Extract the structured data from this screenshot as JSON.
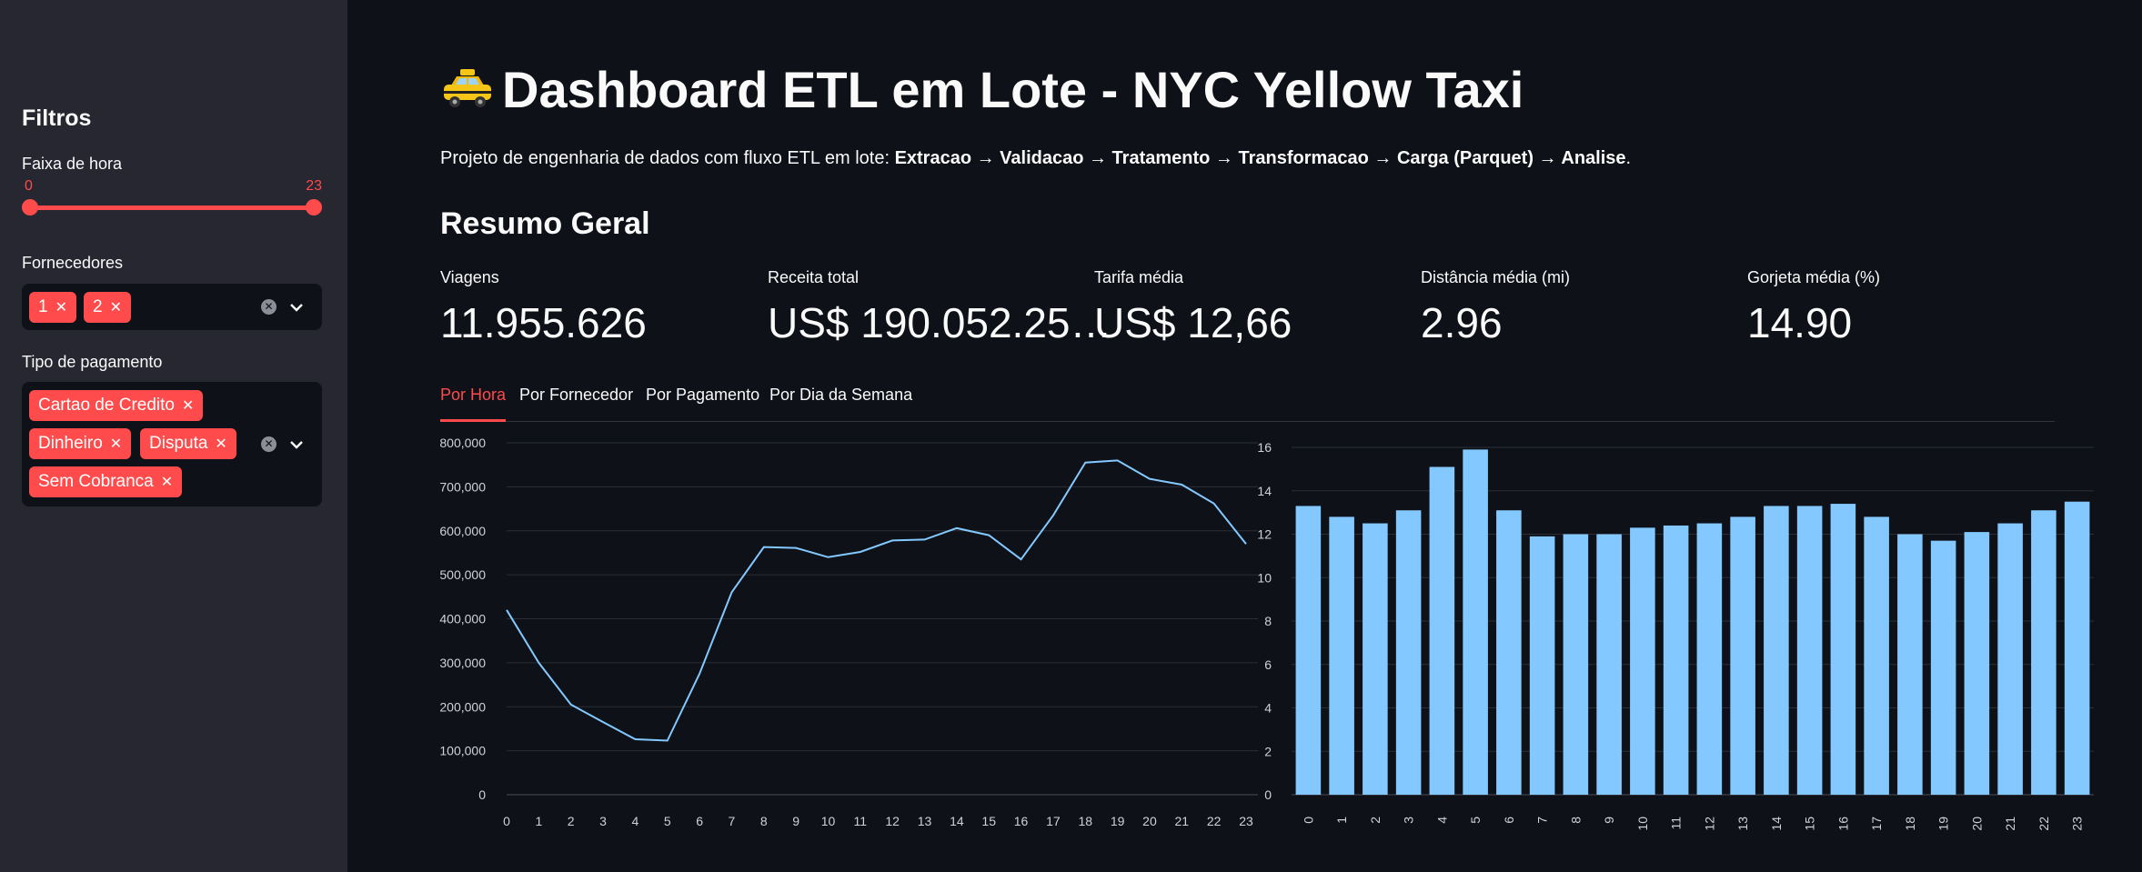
{
  "sidebar": {
    "title": "Filtros",
    "hour_filter": {
      "label": "Faixa de hora",
      "min": "0",
      "max": "23"
    },
    "providers": {
      "label": "Fornecedores",
      "chips": [
        "1",
        "2"
      ]
    },
    "payment": {
      "label": "Tipo de pagamento",
      "chips": [
        "Cartao de Credito",
        "Dinheiro",
        "Disputa",
        "Sem Cobranca"
      ]
    }
  },
  "header": {
    "title": "Dashboard ETL em Lote - NYC Yellow Taxi",
    "subtitle_prefix": "Projeto de engenharia de dados com fluxo ETL em lote: ",
    "subtitle_bold": "Extracao → Validacao → Tratamento → Transformacao → Carga (Parquet) → Analise",
    "subtitle_suffix": "."
  },
  "summary": {
    "title": "Resumo Geral",
    "metrics": [
      {
        "label": "Viagens",
        "value": "11.955.626"
      },
      {
        "label": "Receita total",
        "value": "US$ 190.052.25…"
      },
      {
        "label": "Tarifa média",
        "value": "US$ 12,66"
      },
      {
        "label": "Distância média (mi)",
        "value": "2.96"
      },
      {
        "label": "Gorjeta média (%)",
        "value": "14.90"
      }
    ]
  },
  "tabs": [
    {
      "label": "Por Hora",
      "active": true
    },
    {
      "label": "Por Fornecedor",
      "active": false
    },
    {
      "label": "Por Pagamento",
      "active": false
    },
    {
      "label": "Por Dia da Semana",
      "active": false
    }
  ],
  "colors": {
    "accent": "#ff4b4b",
    "series": "#83c9ff",
    "background": "#0e1117",
    "sidebar": "#262730"
  },
  "icons": {
    "title": "taxi-icon",
    "clear": "clear-icon",
    "dropdown": "chevron-down-icon"
  },
  "chart_data": [
    {
      "type": "line",
      "x": [
        "0",
        "1",
        "2",
        "3",
        "4",
        "5",
        "6",
        "7",
        "8",
        "9",
        "10",
        "11",
        "12",
        "13",
        "14",
        "15",
        "16",
        "17",
        "18",
        "19",
        "20",
        "21",
        "22",
        "23"
      ],
      "series": [
        {
          "values": [
            420000,
            300000,
            205000,
            165000,
            126000,
            123000,
            275000,
            460000,
            563000,
            561000,
            540000,
            552000,
            578000,
            580000,
            606000,
            590000,
            535000,
            635000,
            755000,
            760000,
            718000,
            705000,
            662000,
            570000
          ]
        }
      ],
      "yticks": [
        "0",
        "100,000",
        "200,000",
        "300,000",
        "400,000",
        "500,000",
        "600,000",
        "700,000",
        "800,000"
      ],
      "ylim": [
        0,
        800000
      ],
      "grid": true
    },
    {
      "type": "bar",
      "categories": [
        "0",
        "1",
        "2",
        "3",
        "4",
        "5",
        "6",
        "7",
        "8",
        "9",
        "10",
        "11",
        "12",
        "13",
        "14",
        "15",
        "16",
        "17",
        "18",
        "19",
        "20",
        "21",
        "22",
        "23"
      ],
      "values": [
        13.3,
        12.8,
        12.5,
        13.1,
        15.1,
        15.9,
        13.1,
        11.9,
        12.0,
        12.0,
        12.3,
        12.4,
        12.5,
        12.8,
        13.3,
        13.3,
        13.4,
        12.8,
        12.0,
        11.7,
        12.1,
        12.5,
        13.1,
        13.5
      ],
      "yticks": [
        "0",
        "2",
        "4",
        "6",
        "8",
        "10",
        "12",
        "14",
        "16"
      ],
      "ylim": [
        0,
        16
      ],
      "grid": true
    }
  ]
}
